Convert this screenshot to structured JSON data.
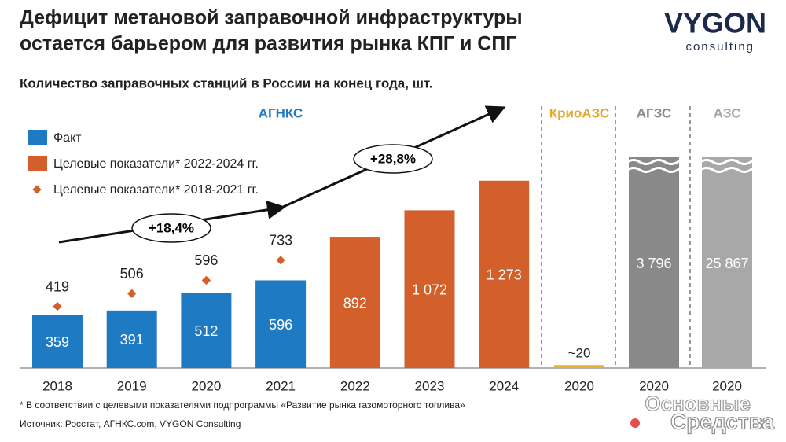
{
  "chart_data": [
    {
      "type": "bar",
      "title": [
        "Дефицит метановой заправочной инфраструктуры",
        "остается барьером для развития рынка КПГ и СПГ"
      ],
      "subtitle": "Количество заправочных станций в России на конец года, шт.",
      "section": "АГНКС",
      "section_color": "#1f7ac4",
      "categories": [
        "2018",
        "2019",
        "2020",
        "2021",
        "2022",
        "2023",
        "2024"
      ],
      "ylim": [
        0,
        1400
      ],
      "series": [
        {
          "name": "Факт",
          "color": "#1f7ac4",
          "values": [
            359,
            391,
            512,
            596,
            null,
            null,
            null
          ]
        },
        {
          "name": "Целевые показатели* 2022-2024 гг.",
          "color": "#d35f2b",
          "values": [
            null,
            null,
            null,
            null,
            892,
            1072,
            1273
          ],
          "value_labels": [
            null,
            null,
            null,
            null,
            "892",
            "1 072",
            "1 273"
          ]
        },
        {
          "name": "Целевые показатели* 2018-2021 гг.",
          "marker": "diamond",
          "color": "#d35f2b",
          "values": [
            419,
            506,
            596,
            733,
            null,
            null,
            null
          ]
        }
      ],
      "annotations": [
        "+18,4%",
        "+28,8%"
      ]
    },
    {
      "type": "bar",
      "section": "КриоАЗС",
      "section_color": "#e2a92b",
      "categories": [
        "2020"
      ],
      "ylim": [
        0,
        1400
      ],
      "color": "#e8b030",
      "values": [
        20
      ],
      "value_labels": [
        "~20"
      ],
      "label_position": "above"
    },
    {
      "type": "bar",
      "section": "АГЗС",
      "section_color": "#8c8c8c",
      "categories": [
        "2020"
      ],
      "ylim": [
        0,
        1400
      ],
      "color": "#898989",
      "values": [
        3796
      ],
      "value_labels": [
        "3 796"
      ],
      "broken": true
    },
    {
      "type": "bar",
      "section": "АЗС",
      "section_color": "#a6a6a6",
      "categories": [
        "2020"
      ],
      "ylim": [
        0,
        1400
      ],
      "color": "#a8a8a8",
      "values": [
        25867
      ],
      "value_labels": [
        "25 867"
      ],
      "broken": true
    }
  ],
  "footnote": "* В соответствии с целевыми показателями подпрограммы «Развитие рынка газомоторного топлива»",
  "source": "Источник: Росстат, АГНКС.com, VYGON Consulting",
  "logo": {
    "name": "VYGON",
    "tagline": "consulting"
  },
  "watermark": [
    "Основные",
    "Средства"
  ]
}
